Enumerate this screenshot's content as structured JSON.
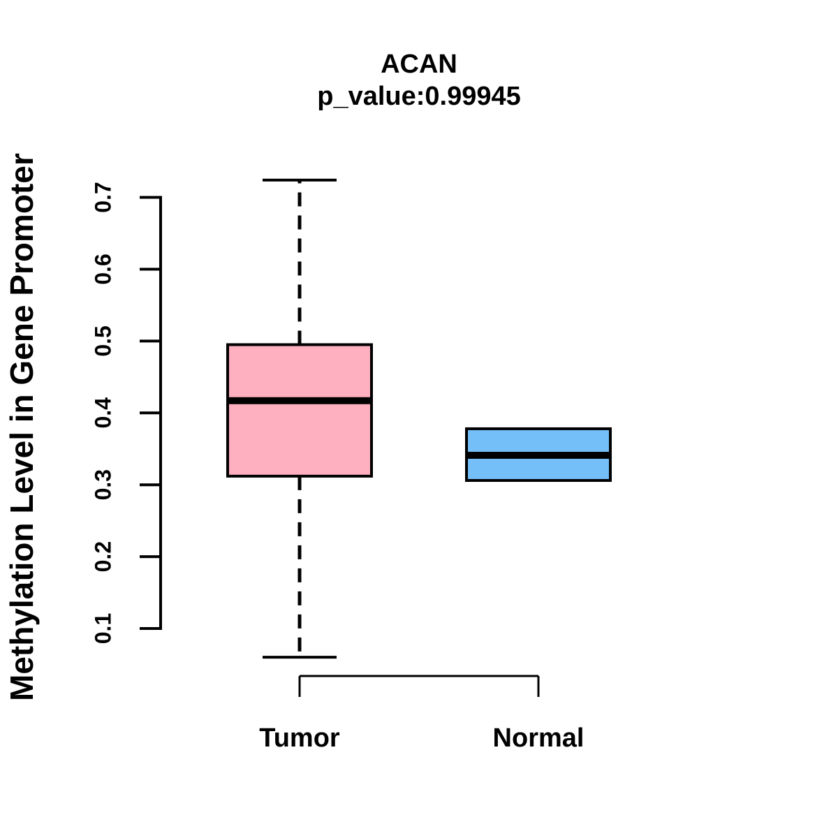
{
  "chart_data": {
    "type": "boxplot",
    "title": "ACAN",
    "subtitle": "p_value:0.99945",
    "gene": "ACAN",
    "p_value": "0.99945",
    "ylabel": "Methylation Level in Gene Promoter",
    "xlabel": "",
    "yticks": [
      0.1,
      0.2,
      0.3,
      0.4,
      0.5,
      0.6,
      0.7
    ],
    "ylim": [
      0.05,
      0.73
    ],
    "grid": "off",
    "legend": "none",
    "line_color": "#000000",
    "background_color": "#ffffff",
    "groups": [
      {
        "label": "Tumor",
        "color": "#FFB0C0",
        "whisker_low": 0.06,
        "q1": 0.312,
        "median": 0.417,
        "q3": 0.495,
        "whisker_high": 0.724
      },
      {
        "label": "Normal",
        "color": "#74BFF7",
        "whisker_low": 0.306,
        "q1": 0.306,
        "median": 0.341,
        "q3": 0.378,
        "whisker_high": 0.378
      }
    ]
  }
}
